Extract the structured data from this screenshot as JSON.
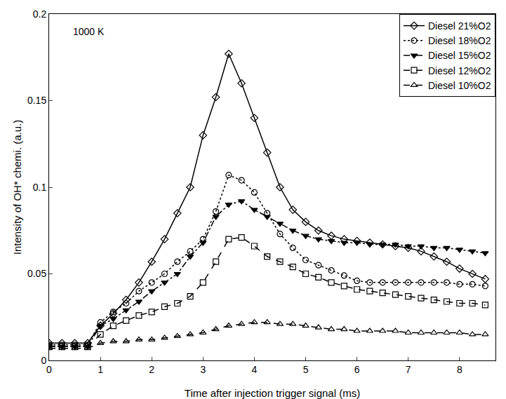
{
  "chart_data": {
    "type": "line",
    "x_label": "Time after injection trigger signal (ms)",
    "y_label": "Intensity of OH* chemi. (a.u.)",
    "annotations": [
      "1000 K"
    ],
    "x": [
      0,
      0.25,
      0.5,
      0.75,
      1,
      1.25,
      1.5,
      1.75,
      2,
      2.25,
      2.5,
      2.75,
      3,
      3.25,
      3.5,
      3.75,
      4,
      4.25,
      4.5,
      4.75,
      5,
      5.25,
      5.5,
      5.75,
      6,
      6.25,
      6.5,
      6.75,
      7,
      7.25,
      7.5,
      7.75,
      8,
      8.25,
      8.5
    ],
    "series": [
      {
        "name": "Diesel 21%O2",
        "color": "#000000",
        "marker": "diamond-open",
        "line_style": "solid",
        "values": [
          0.01,
          0.01,
          0.01,
          0.01,
          0.02,
          0.027,
          0.035,
          0.045,
          0.057,
          0.07,
          0.085,
          0.1,
          0.13,
          0.152,
          0.177,
          0.16,
          0.14,
          0.12,
          0.1,
          0.087,
          0.08,
          0.075,
          0.072,
          0.07,
          0.069,
          0.068,
          0.067,
          0.066,
          0.065,
          0.063,
          0.06,
          0.057,
          0.053,
          0.05,
          0.047
        ]
      },
      {
        "name": "Diesel 18%O2",
        "color": "#000000",
        "marker": "circle-open",
        "line_style": "dot",
        "values": [
          0.009,
          0.009,
          0.009,
          0.009,
          0.022,
          0.028,
          0.033,
          0.04,
          0.045,
          0.05,
          0.057,
          0.063,
          0.07,
          0.086,
          0.107,
          0.104,
          0.097,
          0.085,
          0.073,
          0.065,
          0.058,
          0.055,
          0.052,
          0.049,
          0.046,
          0.045,
          0.045,
          0.045,
          0.045,
          0.045,
          0.045,
          0.045,
          0.044,
          0.044,
          0.043
        ]
      },
      {
        "name": "Diesel 15%O2",
        "color": "#000000",
        "marker": "triangle-down",
        "line_style": "dashdot",
        "values": [
          0.008,
          0.008,
          0.008,
          0.008,
          0.02,
          0.024,
          0.029,
          0.034,
          0.04,
          0.045,
          0.05,
          0.06,
          0.068,
          0.083,
          0.09,
          0.092,
          0.087,
          0.083,
          0.079,
          0.075,
          0.072,
          0.07,
          0.069,
          0.068,
          0.068,
          0.067,
          0.067,
          0.067,
          0.066,
          0.066,
          0.065,
          0.065,
          0.064,
          0.063,
          0.062
        ]
      },
      {
        "name": "Diesel 12%O2",
        "color": "#000000",
        "marker": "square-open",
        "line_style": "dash",
        "values": [
          0.008,
          0.008,
          0.008,
          0.008,
          0.015,
          0.02,
          0.023,
          0.026,
          0.028,
          0.031,
          0.033,
          0.037,
          0.045,
          0.057,
          0.07,
          0.071,
          0.066,
          0.06,
          0.057,
          0.054,
          0.05,
          0.048,
          0.045,
          0.043,
          0.041,
          0.04,
          0.039,
          0.038,
          0.037,
          0.036,
          0.035,
          0.034,
          0.033,
          0.033,
          0.032
        ]
      },
      {
        "name": "Diesel 10%O2",
        "color": "#000000",
        "marker": "triangle-up-open",
        "line_style": "dash",
        "values": [
          0.007,
          0.007,
          0.007,
          0.007,
          0.01,
          0.011,
          0.011,
          0.012,
          0.012,
          0.013,
          0.014,
          0.015,
          0.016,
          0.018,
          0.02,
          0.021,
          0.022,
          0.022,
          0.021,
          0.021,
          0.02,
          0.019,
          0.018,
          0.018,
          0.017,
          0.017,
          0.017,
          0.017,
          0.016,
          0.016,
          0.016,
          0.016,
          0.016,
          0.015,
          0.015
        ]
      }
    ],
    "xlim": [
      0,
      8.7
    ],
    "xticks": [
      0,
      1,
      2,
      3,
      4,
      5,
      6,
      7,
      8
    ],
    "ylim": [
      0,
      0.2
    ],
    "yticks": [
      0,
      0.05,
      0.1,
      0.15,
      0.2
    ],
    "grid": false,
    "legend": "upper right"
  }
}
